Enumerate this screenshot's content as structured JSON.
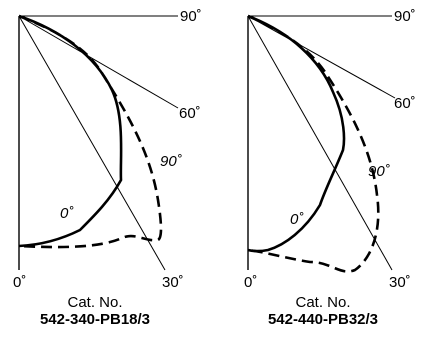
{
  "panels": [
    {
      "angle_labels": {
        "top": "90˚",
        "mid": "60˚",
        "low": "30˚",
        "zero": "0˚"
      },
      "curve_labels": {
        "solid": "0˚",
        "dashed": "90˚"
      },
      "cat_label": "Cat. No.",
      "cat_number": "542-340-PB18/3"
    },
    {
      "angle_labels": {
        "top": "90˚",
        "mid": "60˚",
        "low": "30˚",
        "zero": "0˚"
      },
      "curve_labels": {
        "solid": "0˚",
        "dashed": "90˚"
      },
      "cat_label": "Cat. No.",
      "cat_number": "542-440-PB32/3"
    }
  ]
}
